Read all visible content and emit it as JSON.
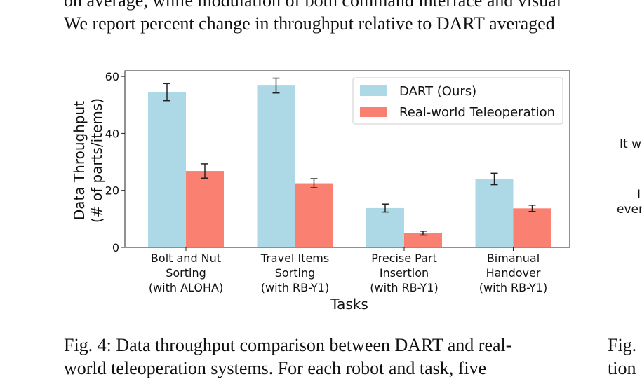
{
  "page_text": {
    "top_line_1": "on average, while modulation of both command interface and visual",
    "top_line_2": "We report percent change in throughput relative to DART averaged",
    "caption_line_1": "Fig. 4: Data throughput comparison between DART and real-",
    "caption_line_2": "world teleoperation systems. For each robot and task, five",
    "right_caption_1": "Fig.",
    "right_caption_2": "tion",
    "side_snippet_1": "It w",
    "side_snippet_2": "I",
    "side_snippet_3": "ever"
  },
  "chart_data": {
    "type": "bar",
    "xlabel": "Tasks",
    "ylabel": [
      "Data Throughput",
      "(# of parts/items)"
    ],
    "ylim": [
      0,
      62
    ],
    "yticks": [
      "0",
      "20",
      "40",
      "60"
    ],
    "categories": [
      [
        "Bolt and Nut",
        "Sorting",
        "(with ALOHA)"
      ],
      [
        "Travel Items",
        "Sorting",
        "(with RB-Y1)"
      ],
      [
        "Precise Part",
        "Insertion",
        "(with RB-Y1)"
      ],
      [
        "Bimanual",
        "Handover",
        "(with RB-Y1)"
      ]
    ],
    "series": [
      {
        "name": "DART (Ours)",
        "color": "#add8e6",
        "values": [
          54.5,
          56.8,
          13.8,
          24.0
        ],
        "errors": [
          3.0,
          2.6,
          1.4,
          2.0
        ]
      },
      {
        "name": "Real-world Teleoperation",
        "color": "#fa8072",
        "values": [
          26.8,
          22.5,
          5.0,
          13.7
        ],
        "errors": [
          2.5,
          1.6,
          0.7,
          1.1
        ]
      }
    ],
    "legend": "top-right",
    "grid": false
  }
}
